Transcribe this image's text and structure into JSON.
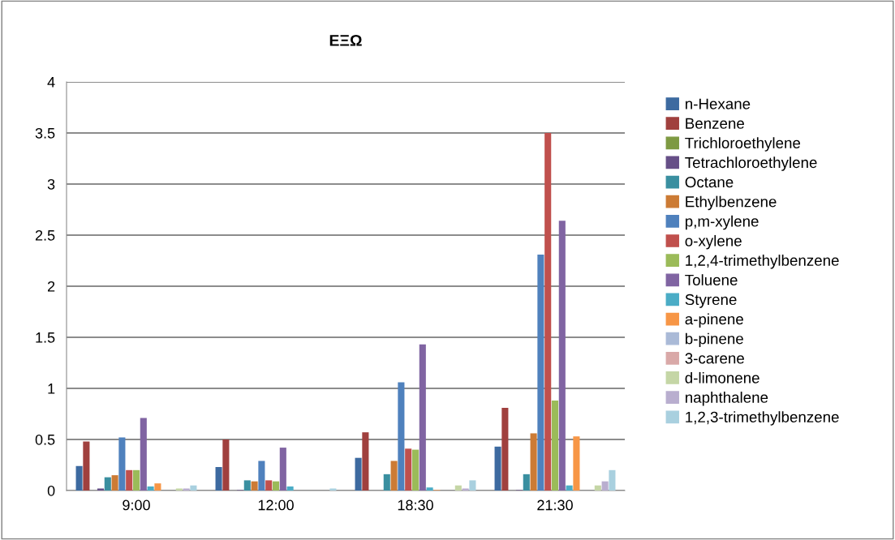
{
  "chart_data": {
    "type": "bar",
    "title": "ΕΞΩ",
    "categories": [
      "9:00",
      "12:00",
      "18:30",
      "21:30"
    ],
    "ylim": [
      0,
      4
    ],
    "yticks": [
      0,
      0.5,
      1,
      1.5,
      2,
      2.5,
      3,
      3.5,
      4
    ],
    "grid": "y",
    "legend": "right",
    "series": [
      {
        "name": "n-Hexane",
        "color": "#3d6aa0",
        "values": [
          0.24,
          0.23,
          0.32,
          0.43
        ]
      },
      {
        "name": "Benzene",
        "color": "#a0403e",
        "values": [
          0.48,
          0.5,
          0.57,
          0.81
        ]
      },
      {
        "name": "Trichloroethylene",
        "color": "#7e9a42",
        "values": [
          null,
          null,
          null,
          null
        ]
      },
      {
        "name": "Tetrachloroethylene",
        "color": "#664f87",
        "values": [
          0.02,
          0.005,
          null,
          0.005
        ]
      },
      {
        "name": "Octane",
        "color": "#3a8fa0",
        "values": [
          0.13,
          0.1,
          0.16,
          0.16
        ]
      },
      {
        "name": "Ethylbenzene",
        "color": "#cc7b35",
        "values": [
          0.15,
          0.09,
          0.29,
          0.56
        ]
      },
      {
        "name": "p,m-xylene",
        "color": "#4f81bd",
        "values": [
          0.52,
          0.29,
          1.06,
          2.31
        ]
      },
      {
        "name": "o-xylene",
        "color": "#c0504d",
        "values": [
          0.2,
          0.1,
          0.41,
          3.5
        ]
      },
      {
        "name": "1,2,4-trimethylbenzene",
        "color": "#9bbb59",
        "values": [
          0.2,
          0.09,
          0.4,
          0.88
        ]
      },
      {
        "name": "Toluene",
        "color": "#8064a2",
        "values": [
          0.71,
          0.42,
          1.43,
          2.64
        ]
      },
      {
        "name": "Styrene",
        "color": "#4bacc6",
        "values": [
          0.04,
          0.04,
          0.03,
          0.05
        ]
      },
      {
        "name": "a-pinene",
        "color": "#f79646",
        "values": [
          0.07,
          null,
          0.005,
          0.53
        ]
      },
      {
        "name": "b-pinene",
        "color": "#aabad7",
        "values": [
          null,
          null,
          null,
          null
        ]
      },
      {
        "name": "3-carene",
        "color": "#d9a9a8",
        "values": [
          null,
          null,
          null,
          null
        ]
      },
      {
        "name": "d-limonene",
        "color": "#c5d6a6",
        "values": [
          0.02,
          null,
          0.05,
          0.05
        ]
      },
      {
        "name": "naphthalene",
        "color": "#b9aecf",
        "values": [
          0.02,
          null,
          0.02,
          0.09
        ]
      },
      {
        "name": "1,2,3-trimethylbenzene",
        "color": "#a9d0df",
        "values": [
          0.05,
          0.02,
          0.1,
          0.2
        ]
      }
    ]
  }
}
